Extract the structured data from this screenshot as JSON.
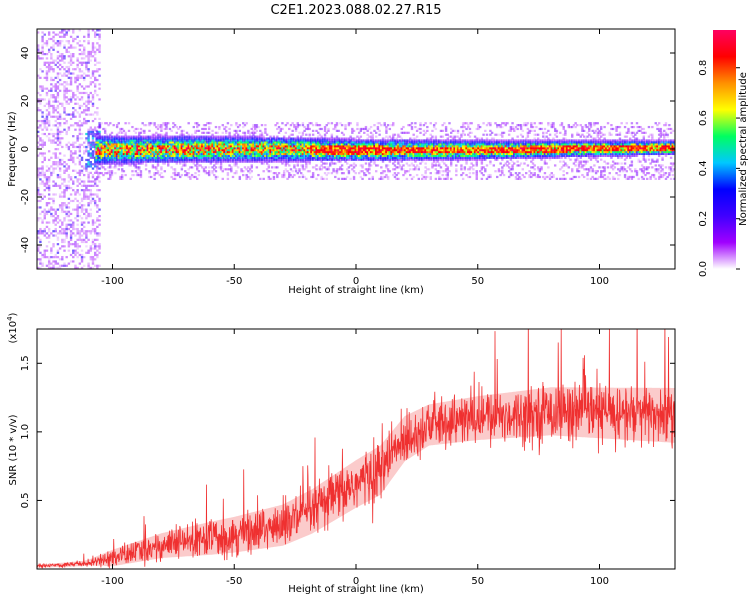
{
  "title": "C2E1.2023.088.02.27.R15",
  "chart_data": [
    {
      "type": "heatmap",
      "xlabel": "Height of straight line (km)",
      "ylabel": "Frequency (Hz)",
      "xlim": [
        -131,
        131
      ],
      "ylim": [
        -50,
        50
      ],
      "xticks": [
        -100,
        -50,
        0,
        50,
        100
      ],
      "xtick_labels": [
        "-100",
        "-50",
        "0",
        "50",
        "100"
      ],
      "yticks": [
        -40,
        -20,
        0,
        20,
        40
      ],
      "ytick_labels": [
        "-40",
        "-20",
        "0",
        "20",
        "40"
      ],
      "colorbar": {
        "label": "Normalized spectral amplitude",
        "range": [
          0,
          0.95
        ],
        "ticks": [
          0.0,
          0.2,
          0.4,
          0.6,
          0.8
        ],
        "tick_labels": [
          "0.0",
          "0.2",
          "0.4",
          "0.6",
          "0.8"
        ],
        "colors": [
          "#ffffff",
          "#a000ff",
          "#4000ff",
          "#0000ff",
          "#00c8ff",
          "#00ff60",
          "#ffff00",
          "#ff9000",
          "#ff0000",
          "#ff0060"
        ]
      },
      "band": {
        "center_freq_hz": [
          {
            "x": -108,
            "y": 0
          },
          {
            "x": -50,
            "y": 0.5
          },
          {
            "x": 0,
            "y": 0
          },
          {
            "x": 50,
            "y": 0
          },
          {
            "x": 131,
            "y": 1
          }
        ],
        "halfwidth_hz": [
          {
            "x": -108,
            "y": 6
          },
          {
            "x": -20,
            "y": 5
          },
          {
            "x": 131,
            "y": 3
          }
        ]
      },
      "broadband_noise_region": {
        "x_from": -131,
        "x_to": -105
      },
      "grid": false
    },
    {
      "type": "line",
      "xlabel": "Height of straight line (km)",
      "ylabel": "SNR (10 * v/v)",
      "y_multiplier": "(x10^4)",
      "xlim": [
        -131,
        131
      ],
      "ylim": [
        0,
        1.75
      ],
      "xticks": [
        -100,
        -50,
        0,
        50,
        100
      ],
      "xtick_labels": [
        "-100",
        "-50",
        "0",
        "50",
        "100"
      ],
      "yticks": [
        0.5,
        1.0,
        1.5
      ],
      "ytick_labels": [
        "0.5",
        "1.0",
        "1.5"
      ],
      "series": [
        {
          "color": "#ef3030",
          "envelope_mean": [
            {
              "x": -131,
              "y": 0.02
            },
            {
              "x": -112,
              "y": 0.04
            },
            {
              "x": -100,
              "y": 0.08
            },
            {
              "x": -80,
              "y": 0.17
            },
            {
              "x": -50,
              "y": 0.25
            },
            {
              "x": -30,
              "y": 0.32
            },
            {
              "x": -18,
              "y": 0.42
            },
            {
              "x": 0,
              "y": 0.62
            },
            {
              "x": 10,
              "y": 0.72
            },
            {
              "x": 20,
              "y": 0.95
            },
            {
              "x": 30,
              "y": 1.05
            },
            {
              "x": 50,
              "y": 1.1
            },
            {
              "x": 80,
              "y": 1.15
            },
            {
              "x": 131,
              "y": 1.12
            }
          ],
          "envelope_spread": [
            {
              "x": -131,
              "y": 0.01
            },
            {
              "x": -110,
              "y": 0.02
            },
            {
              "x": -100,
              "y": 0.06
            },
            {
              "x": -60,
              "y": 0.12
            },
            {
              "x": -20,
              "y": 0.16
            },
            {
              "x": 10,
              "y": 0.18
            },
            {
              "x": 30,
              "y": 0.15
            },
            {
              "x": 131,
              "y": 0.2
            }
          ]
        }
      ],
      "grid": false
    }
  ]
}
